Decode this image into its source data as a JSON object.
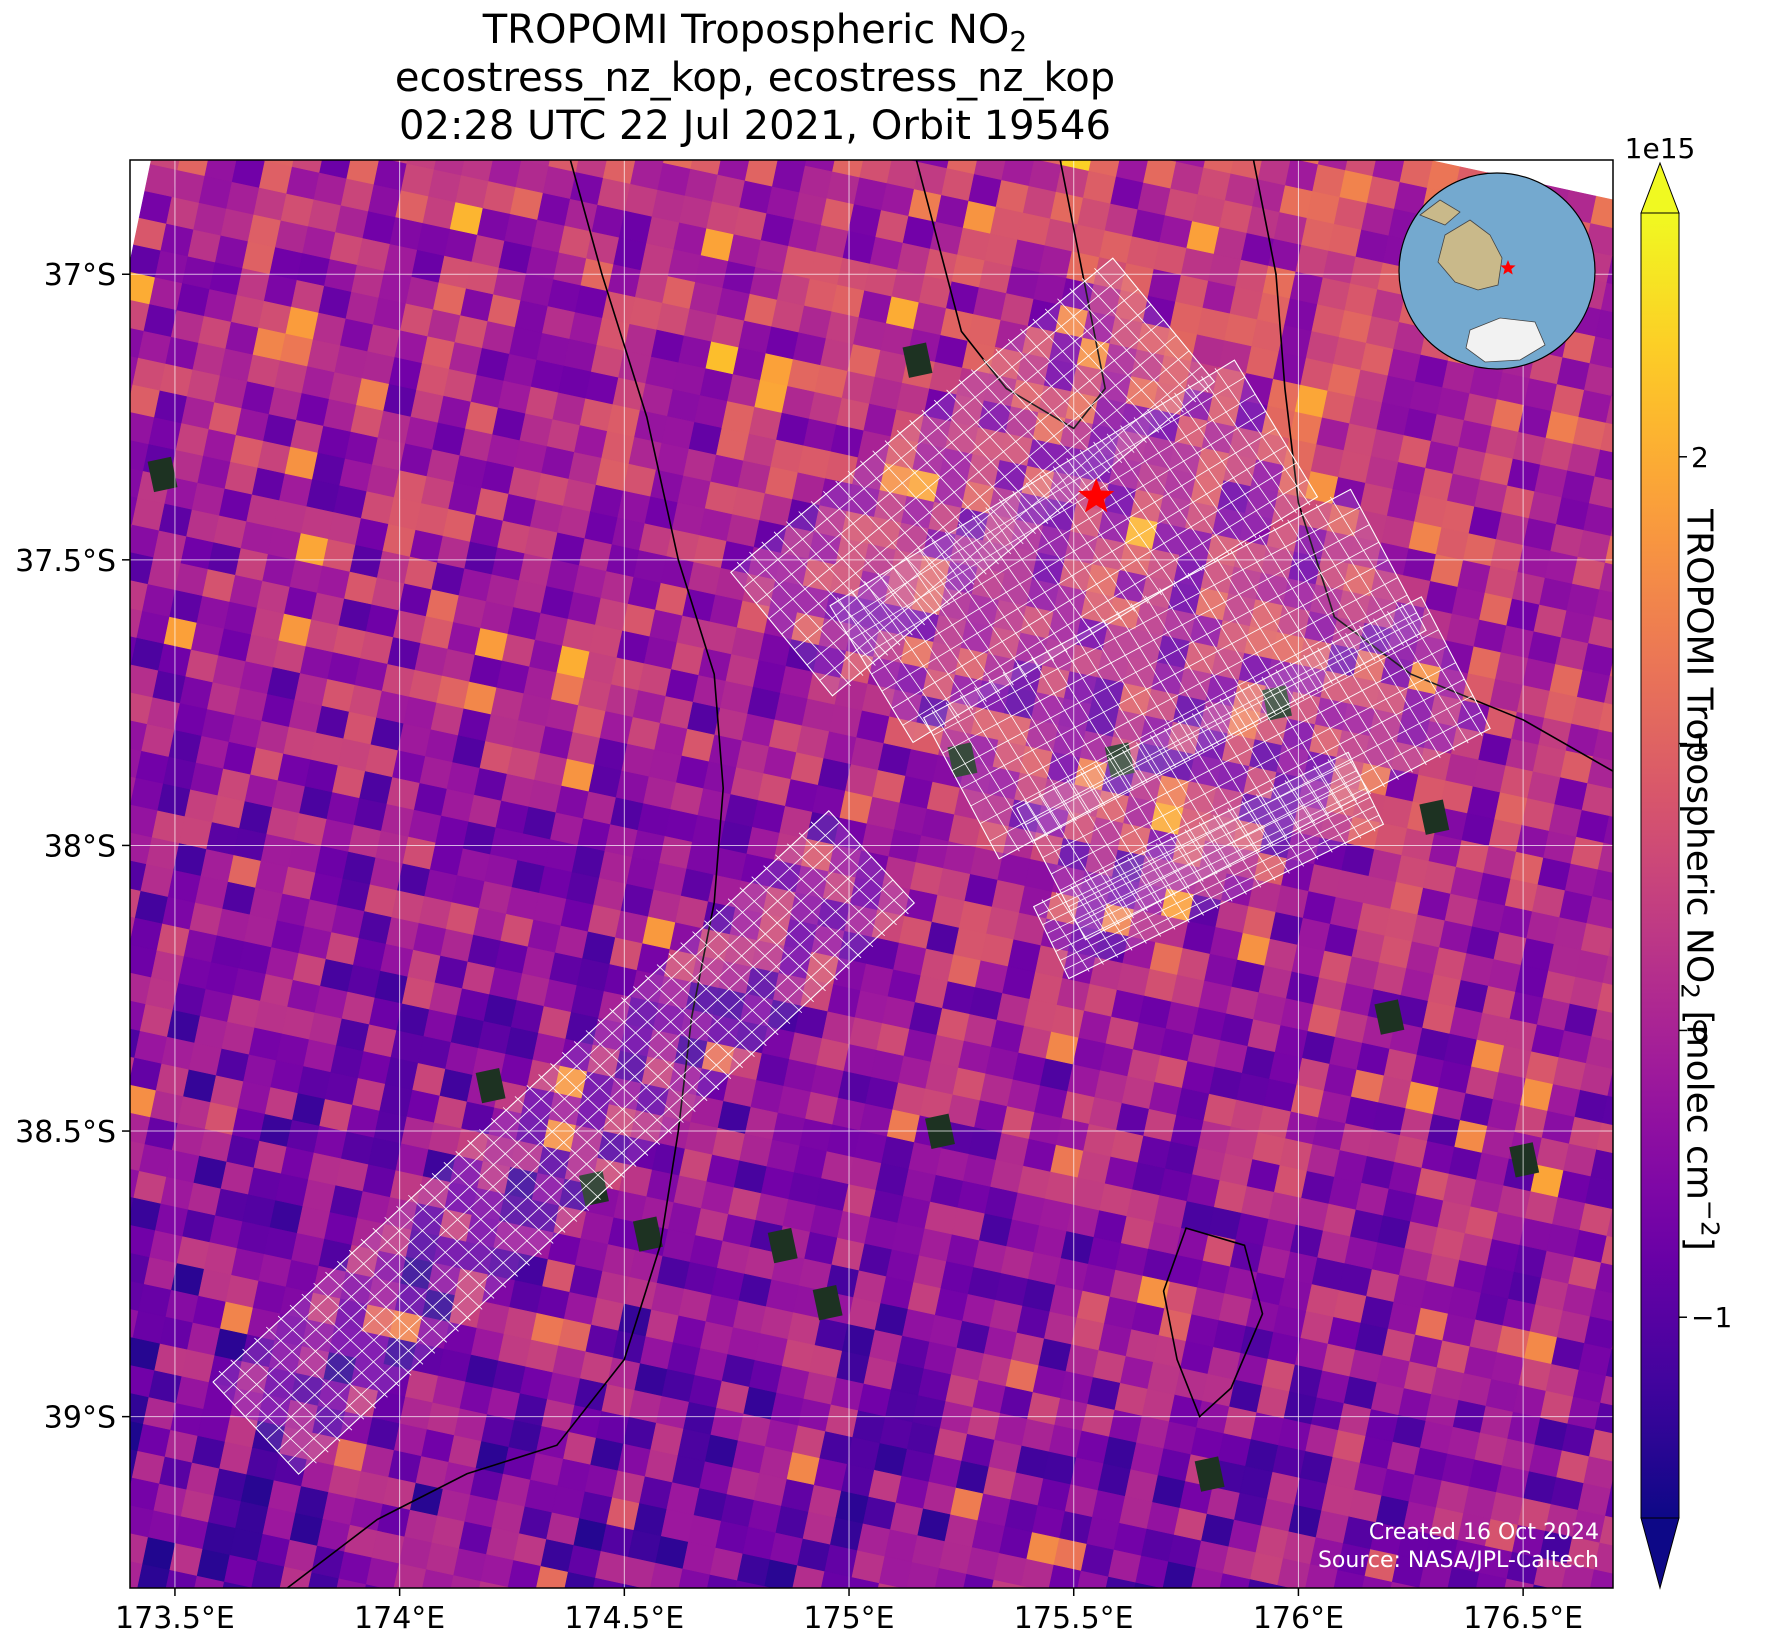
{
  "title": {
    "line1_prefix": "TROPOMI Tropospheric NO",
    "line1_sub": "2",
    "line2": "ecostress_nz_kop, ecostress_nz_kop",
    "line3": "02:28 UTC 22 Jul 2021, Orbit 19546"
  },
  "colorbar": {
    "colormap": "plasma",
    "multiplier": "1e15",
    "label_prefix": "TROPOMI Tropospheric NO",
    "label_sub": "2",
    "label_units_prefix": " [molec cm",
    "label_units_sup": "−2",
    "label_units_suffix": "]",
    "vmin": -1.7,
    "vmax": 2.85,
    "extend": "both",
    "ticks": [
      {
        "value": -1,
        "label": "−1"
      },
      {
        "value": 0,
        "label": "0"
      },
      {
        "value": 1,
        "label": "1"
      },
      {
        "value": 2,
        "label": "2"
      }
    ],
    "colors": [
      "#0d0887",
      "#46039f",
      "#7201a8",
      "#9c179e",
      "#bd3786",
      "#d8576b",
      "#ed7953",
      "#fb9f3a",
      "#fdca26",
      "#f0f921"
    ]
  },
  "chart_data": {
    "type": "heatmap",
    "x_range": [
      173.4,
      176.7
    ],
    "y_range": [
      -39.3,
      -36.8
    ],
    "x_ticks": [
      {
        "value": 173.5,
        "label": "173.5°E"
      },
      {
        "value": 174.0,
        "label": "174°E"
      },
      {
        "value": 174.5,
        "label": "174.5°E"
      },
      {
        "value": 175.0,
        "label": "175°E"
      },
      {
        "value": 175.5,
        "label": "175.5°E"
      },
      {
        "value": 176.0,
        "label": "176°E"
      },
      {
        "value": 176.5,
        "label": "176.5°E"
      }
    ],
    "y_ticks": [
      {
        "value": -37.0,
        "label": "37°S"
      },
      {
        "value": -37.5,
        "label": "37.5°S"
      },
      {
        "value": -38.0,
        "label": "38°S"
      },
      {
        "value": -38.5,
        "label": "38.5°S"
      },
      {
        "value": -39.0,
        "label": "39°S"
      }
    ],
    "grid": true,
    "site_marker": {
      "lon": 175.55,
      "lat": -37.39,
      "symbol": "star",
      "color": "#ff0000"
    },
    "ecostress_footprints": [
      {
        "from": [
          173.68,
          -39.02
        ],
        "to": [
          175.05,
          -38.02
        ],
        "half_width": 0.11
      },
      {
        "from": [
          174.85,
          -37.63
        ],
        "to": [
          175.7,
          -37.08
        ],
        "half_width": 0.14
      },
      {
        "from": [
          175.05,
          -37.7
        ],
        "to": [
          175.95,
          -37.27
        ],
        "half_width": 0.14
      },
      {
        "from": [
          175.25,
          -37.9
        ],
        "to": [
          176.2,
          -37.5
        ],
        "half_width": 0.14
      },
      {
        "from": [
          175.45,
          -38.05
        ],
        "to": [
          176.35,
          -37.68
        ],
        "half_width": 0.13
      },
      {
        "from": [
          175.45,
          -38.17
        ],
        "to": [
          176.15,
          -37.9
        ],
        "half_width": 0.07
      }
    ],
    "coastline": [
      [
        [
          175.15,
          -36.8
        ],
        [
          175.2,
          -36.95
        ],
        [
          175.25,
          -37.1
        ],
        [
          175.35,
          -37.2
        ],
        [
          175.5,
          -37.27
        ],
        [
          175.57,
          -37.2
        ],
        [
          175.52,
          -37.0
        ],
        [
          175.47,
          -36.8
        ]
      ],
      [
        [
          175.9,
          -36.8
        ],
        [
          175.95,
          -37.0
        ],
        [
          175.97,
          -37.2
        ],
        [
          176.0,
          -37.4
        ],
        [
          176.08,
          -37.6
        ],
        [
          176.25,
          -37.7
        ],
        [
          176.5,
          -37.78
        ],
        [
          176.7,
          -37.87
        ]
      ],
      [
        [
          174.38,
          -36.8
        ],
        [
          174.45,
          -37.0
        ],
        [
          174.55,
          -37.25
        ],
        [
          174.62,
          -37.5
        ],
        [
          174.7,
          -37.7
        ],
        [
          174.72,
          -37.9
        ],
        [
          174.7,
          -38.1
        ],
        [
          174.65,
          -38.3
        ],
        [
          174.62,
          -38.5
        ],
        [
          174.58,
          -38.7
        ],
        [
          174.5,
          -38.9
        ],
        [
          174.35,
          -39.05
        ],
        [
          174.15,
          -39.1
        ],
        [
          173.95,
          -39.18
        ],
        [
          173.75,
          -39.3
        ]
      ]
    ],
    "lake": [
      [
        175.75,
        -38.67
      ],
      [
        175.88,
        -38.7
      ],
      [
        175.92,
        -38.82
      ],
      [
        175.85,
        -38.95
      ],
      [
        175.78,
        -39.0
      ],
      [
        175.73,
        -38.9
      ],
      [
        175.7,
        -38.78
      ]
    ],
    "dark_pixel_cells": [
      [
        175.15,
        -37.15
      ],
      [
        173.47,
        -37.35
      ],
      [
        175.25,
        -37.85
      ],
      [
        175.6,
        -37.85
      ],
      [
        174.2,
        -38.42
      ],
      [
        174.43,
        -38.6
      ],
      [
        174.55,
        -38.68
      ],
      [
        174.85,
        -38.7
      ],
      [
        174.95,
        -38.8
      ],
      [
        175.2,
        -38.5
      ],
      [
        175.8,
        -39.1
      ],
      [
        176.2,
        -38.3
      ],
      [
        176.5,
        -38.55
      ],
      [
        176.3,
        -37.95
      ],
      [
        175.95,
        -37.75
      ]
    ]
  },
  "inset_globe": {
    "ocean_color": "#74a9cf",
    "land_color": "#c9b98a",
    "ice_color": "#f2f2f2",
    "marker_color": "#ff0000"
  },
  "credits": {
    "line1": "Created 16 Oct 2024",
    "line2": "Source: NASA/JPL-Caltech"
  }
}
